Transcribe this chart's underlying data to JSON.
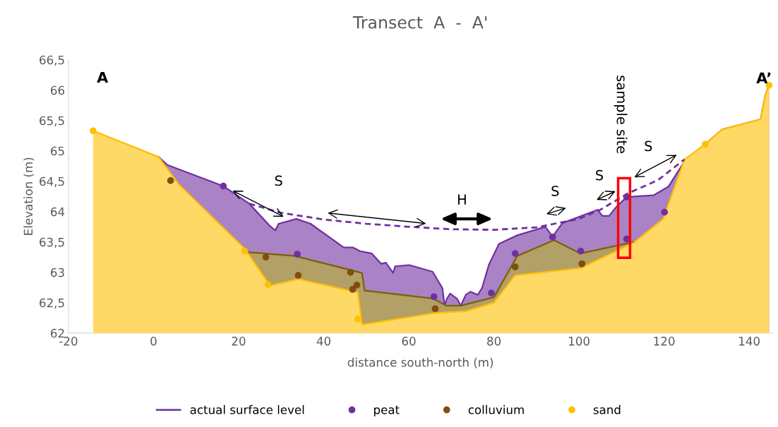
{
  "chart_data": {
    "type": "area",
    "title": "Transect  A  -  A'",
    "xlabel": "distance south-north (m)",
    "ylabel": "Elevation (m)",
    "xlim": [
      -20,
      145.5
    ],
    "xticks": [
      -20,
      0,
      20,
      40,
      60,
      80,
      100,
      120,
      140
    ],
    "ylim": [
      62,
      66.5
    ],
    "yticks": [
      62,
      {
        "value": 62.5,
        "label": "62,5"
      },
      63,
      {
        "value": 63.5,
        "label": "63,5"
      },
      64,
      {
        "value": 64.5,
        "label": "64,5"
      },
      65,
      {
        "value": 65.5,
        "label": "65,5"
      },
      66,
      {
        "value": 66.5,
        "label": "66,5"
      }
    ],
    "grid": false,
    "legend": "bottom",
    "series": [
      {
        "name": "actual surface level",
        "color": "#7030a0",
        "x": [
          1.2,
          3.2,
          16.4,
          22.5,
          27.4,
          28.6,
          29.4,
          33.6,
          36.9,
          44.7,
          46.8,
          48.5,
          51.3,
          53.5,
          54.6,
          56.3,
          56.8,
          60.1,
          65.6,
          67.9,
          68.4,
          68.9,
          69.7,
          71.4,
          72.2,
          73.4,
          74.5,
          76.2,
          77.2,
          78.8,
          81.2,
          85.5,
          92.1,
          93.8,
          96.1,
          104.4,
          105.5,
          107.1,
          108.7,
          111.2,
          117.6,
          121.0,
          125.1,
          129.7,
          133.6,
          142.7,
          143.8,
          144.7
        ],
        "values": [
          64.9,
          64.77,
          64.42,
          64.13,
          63.76,
          63.69,
          63.8,
          63.88,
          63.8,
          63.41,
          63.41,
          63.35,
          63.31,
          63.14,
          63.16,
          62.99,
          63.1,
          63.12,
          63.01,
          62.74,
          62.45,
          62.56,
          62.65,
          62.56,
          62.45,
          62.63,
          62.68,
          62.63,
          62.74,
          63.12,
          63.47,
          63.61,
          63.75,
          63.59,
          63.81,
          64.03,
          63.93,
          63.93,
          64.07,
          64.24,
          64.27,
          64.41,
          64.86,
          65.11,
          65.35,
          65.52,
          65.92,
          66.08
        ]
      },
      {
        "color": "#7f6000",
        "x": [
          22.5,
          33.2,
          49.0,
          49.6,
          65.6,
          68.9,
          72.2,
          80.0,
          85.5,
          94.1,
          100.4,
          112.8
        ],
        "values": [
          63.33,
          63.27,
          62.99,
          62.7,
          62.57,
          62.45,
          62.45,
          62.59,
          63.27,
          63.53,
          63.31,
          63.5
        ]
      },
      {
        "color": "#ffc000",
        "x": [
          -14.2,
          1.2,
          5.9,
          21.4,
          27.4,
          34.1,
          48.0,
          49.0,
          66.2,
          73.4,
          80.0,
          85.0,
          100.4,
          112.7,
          119.8,
          124.8,
          129.7,
          133.6,
          142.7,
          143.8,
          144.7
        ],
        "values": [
          65.33,
          64.9,
          64.45,
          63.39,
          62.78,
          62.89,
          62.67,
          62.14,
          62.33,
          62.36,
          62.5,
          62.95,
          63.07,
          63.48,
          63.88,
          64.86,
          65.11,
          65.35,
          65.52,
          65.92,
          66.08
        ]
      },
      {
        "type": "line",
        "color": "#7030a0",
        "line_style": "dashed",
        "x": [
          22.5,
          30,
          40,
          50,
          60,
          70,
          80,
          90,
          100,
          105,
          111.5,
          118.6,
          124.8
        ],
        "values": [
          64.13,
          63.98,
          63.87,
          63.8,
          63.75,
          63.71,
          63.7,
          63.74,
          63.88,
          64.03,
          64.3,
          64.52,
          64.86
        ]
      },
      {
        "name": "peat",
        "type": "scatter",
        "marker": "circle",
        "color": "#7030a0",
        "x": [
          16.4,
          33.8,
          65.9,
          79.4,
          85.0,
          93.8,
          100.4,
          111.2,
          111.2,
          120.1
        ],
        "values": [
          64.42,
          63.3,
          62.6,
          62.66,
          63.31,
          63.58,
          63.35,
          63.55,
          64.24,
          63.99
        ]
      },
      {
        "name": "colluvium",
        "type": "scatter",
        "marker": "circle",
        "color": "#7f4f10",
        "x": [
          4.0,
          26.4,
          34.0,
          46.3,
          47.8,
          46.8,
          66.2,
          85.0,
          100.7
        ],
        "values": [
          64.51,
          63.25,
          62.95,
          63.0,
          62.79,
          62.72,
          62.4,
          63.09,
          63.14
        ]
      },
      {
        "name": "sand",
        "type": "scatter",
        "marker": "circle",
        "color": "#ffc000",
        "x": [
          -14.2,
          21.4,
          26.9,
          48.0,
          129.7,
          144.7
        ],
        "values": [
          65.33,
          63.35,
          62.8,
          62.23,
          65.11,
          66.08
        ]
      }
    ],
    "annotations": [
      "S",
      "H",
      "S",
      "S",
      "S",
      "A",
      "A’",
      "sample site"
    ]
  }
}
